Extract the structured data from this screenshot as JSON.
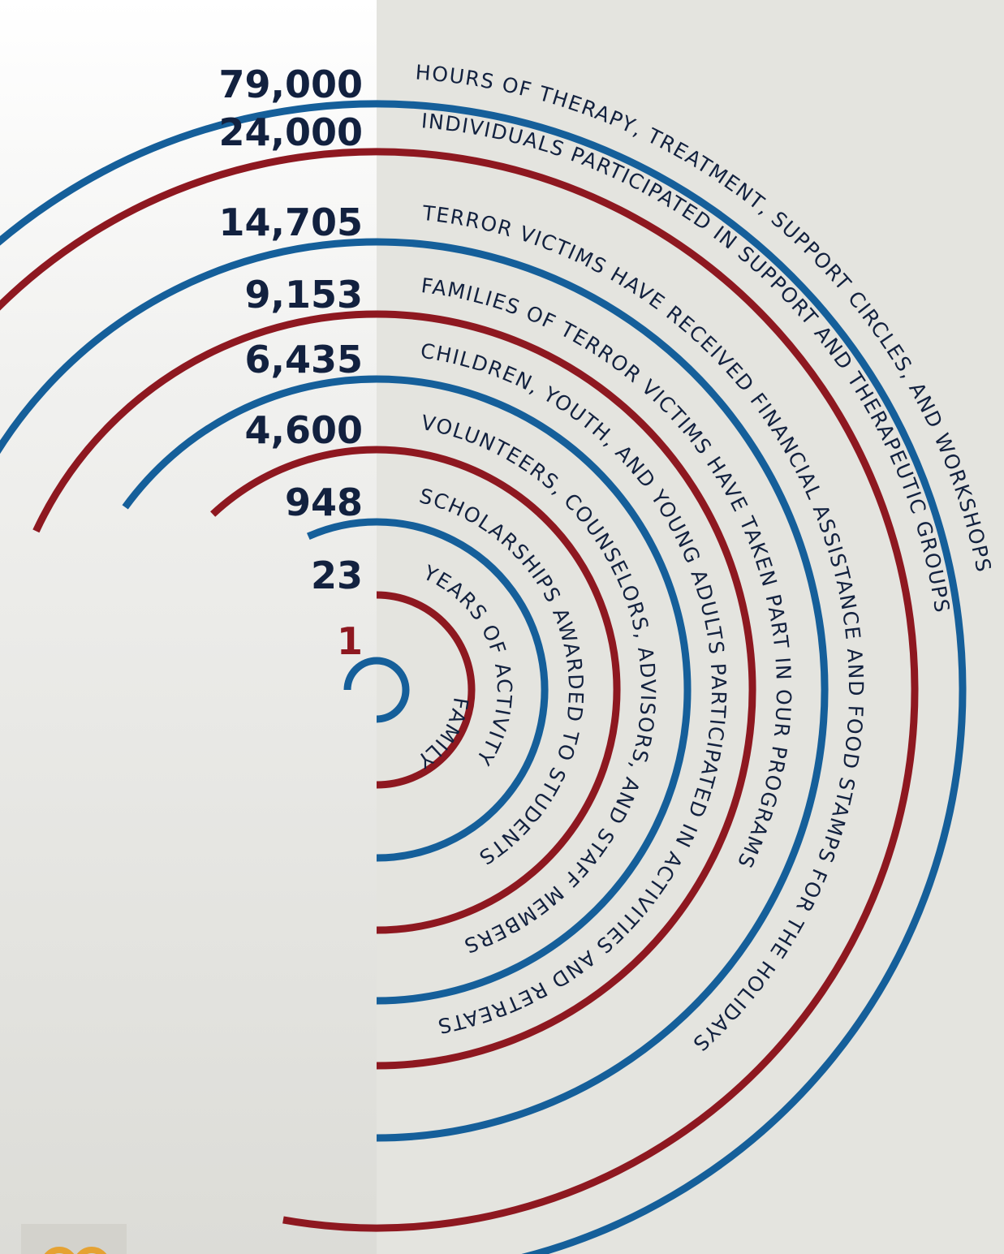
{
  "colors": {
    "navy": "#12213f",
    "blue": "#155f9a",
    "red": "#8e1820",
    "accent": "#8e1820"
  },
  "chart_data": {
    "type": "radial-infographic",
    "title": "",
    "stats": [
      {
        "value": "79,000",
        "label": "HOURS OF THERAPY, TREATMENT, SUPPORT CIRCLES, AND WORKSHOPS",
        "color": "blue"
      },
      {
        "value": "24,000",
        "label": "INDIVIDUALS PARTICIPATED IN SUPPORT AND THERAPEUTIC GROUPS",
        "color": "red"
      },
      {
        "value": "14,705",
        "label": "TERROR VICTIMS HAVE RECEIVED FINANCIAL ASSISTANCE AND FOOD STAMPS FOR THE HOLIDAYS",
        "color": "blue"
      },
      {
        "value": "9,153",
        "label": "FAMILIES OF TERROR VICTIMS HAVE TAKEN PART IN OUR PROGRAMS",
        "color": "red"
      },
      {
        "value": "6,435",
        "label": "CHILDREN, YOUTH, AND YOUNG ADULTS PARTICIPATED IN ACTIVITIES AND RETREATS",
        "color": "blue"
      },
      {
        "value": "4,600",
        "label": "VOLUNTEERS, COUNSELORS, ADVISORS, AND STAFF MEMBERS",
        "color": "red"
      },
      {
        "value": "948",
        "label": "SCHOLARSHIPS AWARDED TO STUDENTS",
        "color": "blue"
      },
      {
        "value": "23",
        "label": "YEARS OF ACTIVITY",
        "color": "red"
      },
      {
        "value": "1",
        "label": "FAMILY",
        "color": "blue",
        "highlight": true
      }
    ]
  }
}
